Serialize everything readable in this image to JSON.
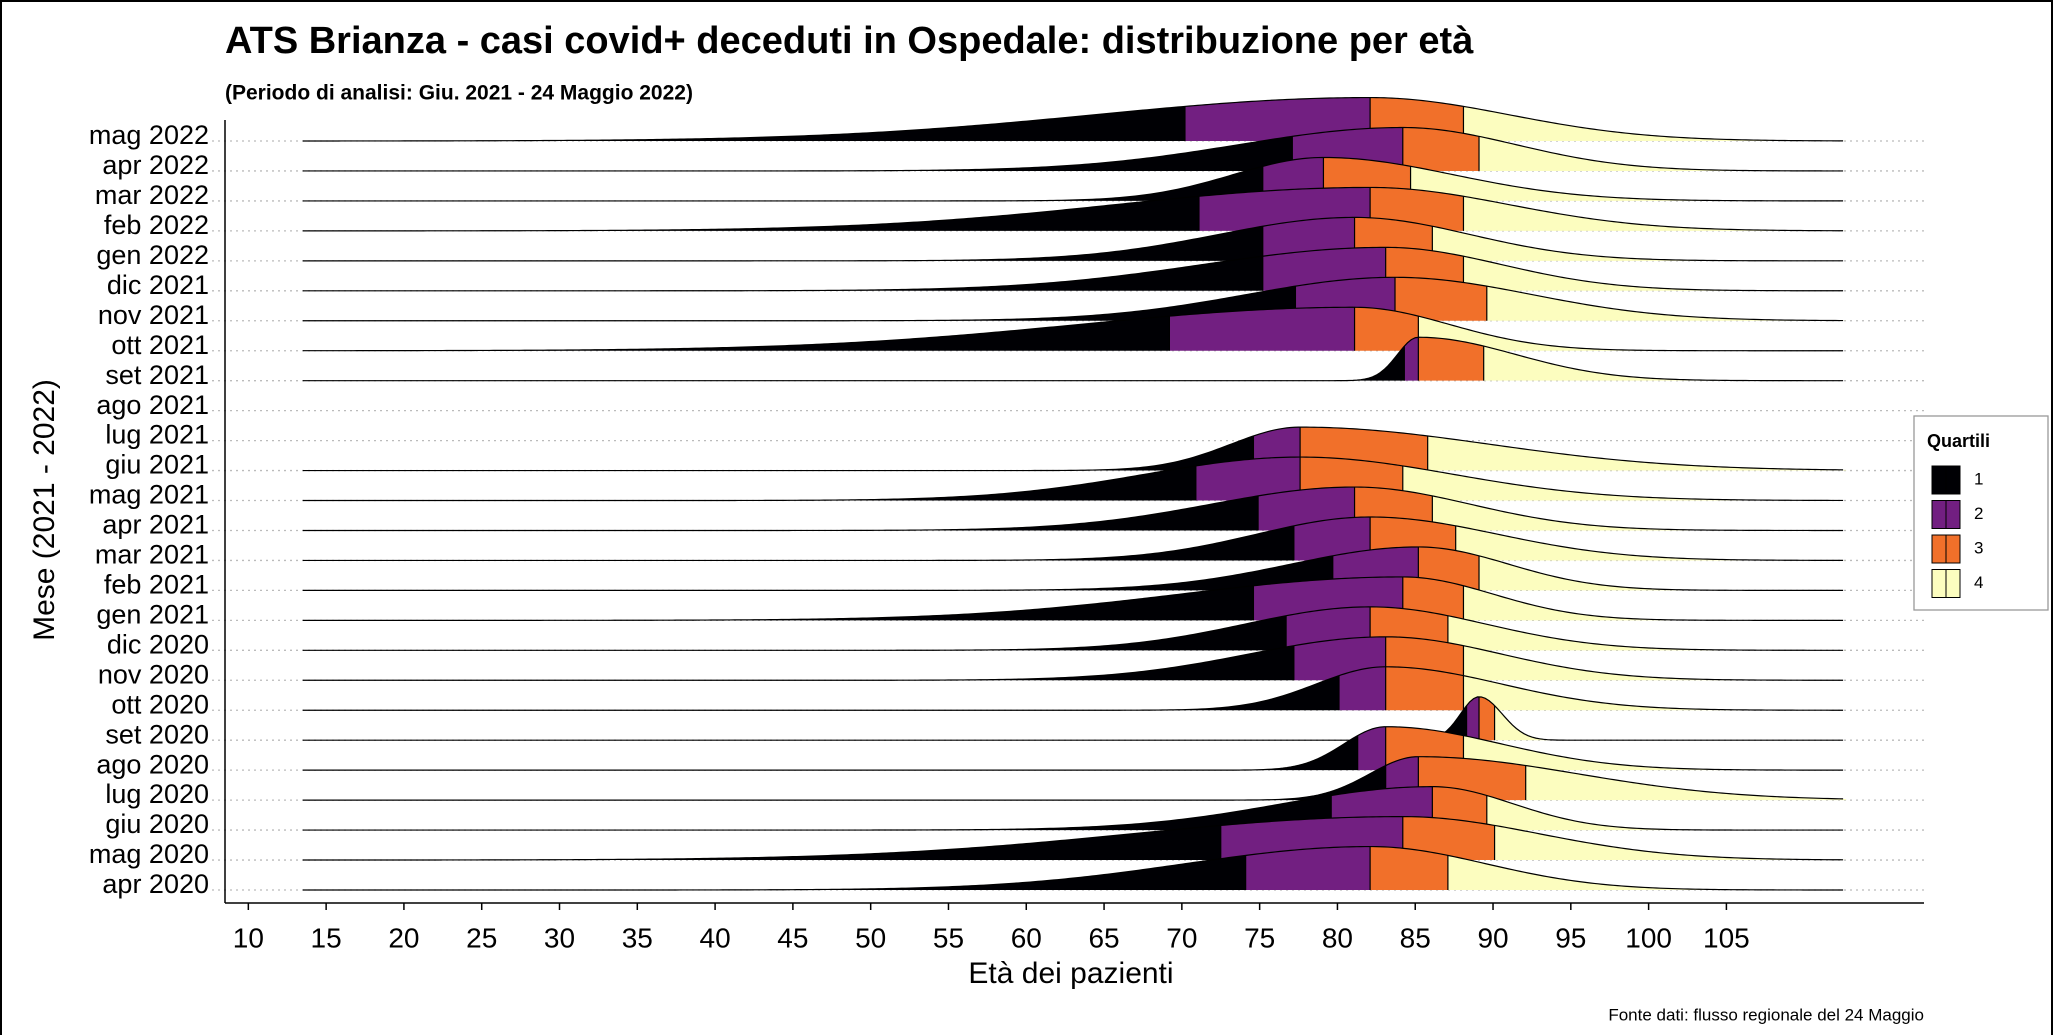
{
  "chart_data": {
    "type": "ridgeline",
    "title": "ATS Brianza - casi covid+ deceduti in Ospedale: distribuzione per età",
    "subtitle": "(Periodo di analisi: Giu. 2021 - 24 Maggio 2022)",
    "x_label": "Età dei pazienti",
    "y_label": "Mese (2021 - 2022)",
    "source": "Fonte dati: flusso regionale del 24 Maggio",
    "categories": [
      "mag 2022",
      "apr 2022",
      "mar 2022",
      "feb 2022",
      "gen 2022",
      "dic 2021",
      "nov 2021",
      "ott 2021",
      "set 2021",
      "ago 2021",
      "lug 2021",
      "giu 2021",
      "mag 2021",
      "apr 2021",
      "mar 2021",
      "feb 2021",
      "gen 2021",
      "dic 2020",
      "nov 2020",
      "ott 2020",
      "set 2020",
      "ago 2020",
      "lug 2020",
      "giu 2020",
      "mag 2020",
      "apr 2020"
    ],
    "q1": [
      70.2,
      77.1,
      75.2,
      71.1,
      75.2,
      75.2,
      77.3,
      69.2,
      84.3,
      null,
      null,
      74.6,
      70.9,
      74.9,
      77.2,
      79.7,
      74.6,
      76.7,
      77.2,
      80.1,
      88.3,
      81.3,
      83.1,
      79.6,
      72.5,
      74.1
    ],
    "median": [
      82.1,
      84.2,
      79.1,
      82.1,
      81.1,
      83.1,
      83.7,
      81.1,
      85.2,
      null,
      null,
      77.6,
      77.6,
      81.1,
      82.1,
      85.2,
      84.2,
      82.1,
      83.1,
      83.1,
      89.1,
      83.1,
      85.2,
      86.1,
      84.2,
      82.1
    ],
    "q3": [
      88.1,
      89.1,
      84.7,
      88.1,
      86.1,
      88.1,
      89.6,
      85.2,
      89.4,
      null,
      null,
      85.8,
      84.2,
      86.1,
      87.6,
      89.1,
      88.1,
      87.1,
      88.1,
      88.1,
      90.1,
      88.1,
      92.1,
      89.6,
      90.1,
      87.1
    ],
    "xlim": [
      8.5,
      117.7
    ],
    "xticks": [
      10,
      15,
      20,
      25,
      30,
      35,
      40,
      45,
      50,
      55,
      60,
      65,
      70,
      75,
      80,
      85,
      90,
      95,
      100,
      105
    ],
    "grid": true,
    "legend": {
      "title": "Quartili",
      "labels": [
        "1",
        "2",
        "3",
        "4"
      ],
      "colors": [
        "#000004",
        "#721f81",
        "#f1702a",
        "#fcfdbf"
      ],
      "position": "right"
    }
  }
}
